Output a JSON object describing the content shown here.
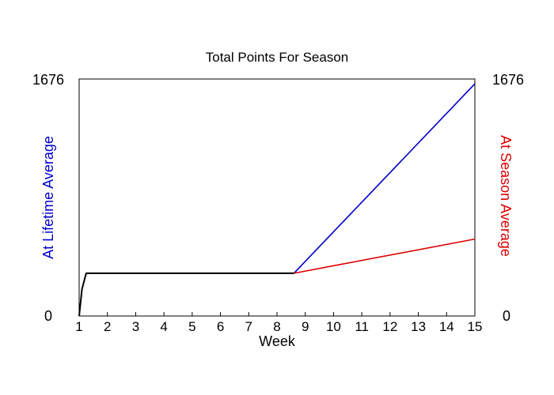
{
  "chart_data": {
    "type": "line",
    "title": "Total Points For Season",
    "xlabel": "Week",
    "ylabel_left": "At Lifetime Average",
    "ylabel_right": "At Season Average",
    "xlim": [
      1,
      15
    ],
    "ylim": [
      0,
      1676
    ],
    "y_tick_labels": [
      "0",
      "1676"
    ],
    "x_tick_labels": [
      "1",
      "2",
      "3",
      "4",
      "5",
      "6",
      "7",
      "8",
      "9",
      "10",
      "11",
      "12",
      "13",
      "14",
      "15"
    ],
    "colors": {
      "actual": "#000000",
      "lifetime": "#0000cc",
      "season": "#dd0000",
      "left_label": "#0000cc",
      "right_label": "#dd0000"
    },
    "series": [
      {
        "key": "actual",
        "x": [
          1,
          1.1,
          1.25,
          8.6
        ],
        "y": [
          0,
          190,
          302,
          302
        ]
      },
      {
        "key": "lifetime",
        "x": [
          8.6,
          15
        ],
        "y": [
          302,
          1642
        ]
      },
      {
        "key": "season",
        "x": [
          8.6,
          15
        ],
        "y": [
          302,
          544
        ]
      }
    ]
  }
}
